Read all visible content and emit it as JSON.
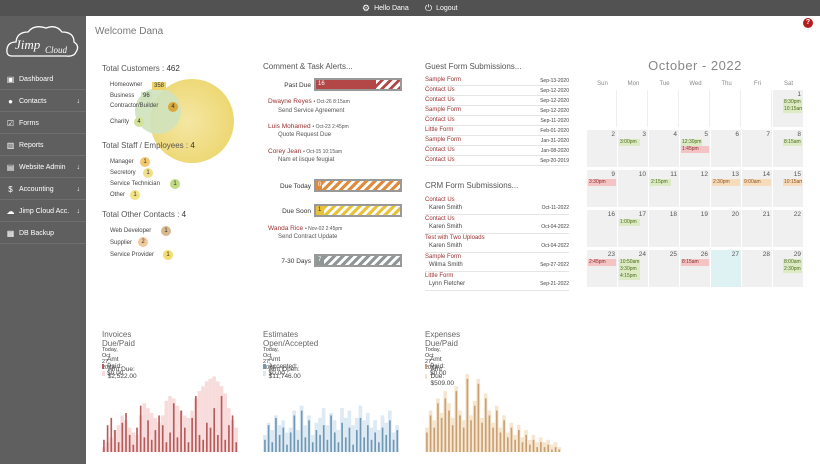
{
  "topbar": {
    "user_label": "Hello Dana",
    "logout_label": "Logout"
  },
  "alert_count": "?",
  "brand": {
    "name": "Jimp Cloud"
  },
  "sidebar": {
    "items": [
      {
        "label": "Dashboard",
        "icon": "dashboard-icon",
        "arrow": ""
      },
      {
        "label": "Contacts",
        "icon": "user-icon",
        "arrow": "↓"
      },
      {
        "label": "Forms",
        "icon": "checkbox-icon",
        "arrow": ""
      },
      {
        "label": "Reports",
        "icon": "bar-chart-icon",
        "arrow": ""
      },
      {
        "label": "Website Admin",
        "icon": "browser-icon",
        "arrow": "↓"
      },
      {
        "label": "Accounting",
        "icon": "dollar-icon",
        "arrow": "↓"
      },
      {
        "label": "Jimp Cloud Acc.",
        "icon": "jimp-icon",
        "arrow": "↓"
      },
      {
        "label": "DB Backup",
        "icon": "backup-icon",
        "arrow": ""
      }
    ]
  },
  "welcome": "Welcome Dana",
  "customers": {
    "title": "Total Customers :",
    "total": "462",
    "items": [
      {
        "label": "Homeowner",
        "value": "358"
      },
      {
        "label": "Business",
        "value": "96"
      },
      {
        "label": "Contractor/Builder",
        "value": "4"
      },
      {
        "label": "Charity",
        "value": "4"
      }
    ]
  },
  "staff": {
    "title": "Total Staff / Employees :",
    "total": "4",
    "items": [
      {
        "label": "Manager",
        "value": "1"
      },
      {
        "label": "Secretory",
        "value": "1"
      },
      {
        "label": "Service Technician",
        "value": "1"
      },
      {
        "label": "Other",
        "value": "1"
      }
    ]
  },
  "other_contacts": {
    "title": "Total Other Contacts :",
    "total": "4",
    "items": [
      {
        "label": "Web Developer",
        "value": "1"
      },
      {
        "label": "Supplier",
        "value": "2"
      },
      {
        "label": "Service Provider",
        "value": "1"
      }
    ]
  },
  "alerts": {
    "title": "Comment & Task Alerts...",
    "past_due": {
      "label": "Past Due",
      "count": "16"
    },
    "past_items": [
      {
        "name": "Dwayne Reyes",
        "meta": "• Oct-26 8:15am",
        "desc": "Send Service Agreement"
      },
      {
        "name": "Luis Mohamed",
        "meta": "• Oct-23 2:45pm",
        "desc": "Quote Request Due"
      },
      {
        "name": "Corey Jean",
        "meta": "• Oct-15 10:15am",
        "desc": "Nam et iisque feugiat"
      }
    ],
    "due_today": {
      "label": "Due Today",
      "count": "0"
    },
    "due_soon": {
      "label": "Due Soon",
      "count": "1"
    },
    "soon_items": [
      {
        "name": "Wanda Rice",
        "meta": "• Nov-02 2:45pm",
        "desc": "Send Contract Update"
      }
    ],
    "next_days": {
      "label": "7-30 Days",
      "count": "7"
    },
    "colors": {
      "past_due": "#b34747",
      "due_today": "#e08a3c",
      "due_soon": "#e8c33a",
      "next_days": "#8e9696"
    }
  },
  "guest_forms": {
    "title": "Guest Form Submissions...",
    "rows": [
      {
        "name": "Sample Form",
        "date": "Sep-13-2020"
      },
      {
        "name": "Contact Us",
        "date": "Sep-12-2020"
      },
      {
        "name": "Contact Us",
        "date": "Sep-12-2020"
      },
      {
        "name": "Sample Form",
        "date": "Sep-12-2020"
      },
      {
        "name": "Contact Us",
        "date": "Sep-11-2020"
      },
      {
        "name": "Little Form",
        "date": "Feb-01-2020"
      },
      {
        "name": "Sample Form",
        "date": "Jan-31-2020"
      },
      {
        "name": "Contact Us",
        "date": "Jan-08-2020"
      },
      {
        "name": "Contact Us",
        "date": "Sep-20-2019"
      }
    ]
  },
  "crm_forms": {
    "title": "CRM Form Submissions...",
    "rows": [
      {
        "name": "Contact Us",
        "person": "Karen Smith",
        "date": "Oct-11-2022"
      },
      {
        "name": "Contact Us",
        "person": "Karen Smith",
        "date": "Oct-04-2022"
      },
      {
        "name": "Test with Two Uploads",
        "person": "Karen Smith",
        "date": "Oct-04-2022"
      },
      {
        "name": "Sample Form",
        "person": "Wilma Smith",
        "date": "Sep-27-2022"
      },
      {
        "name": "Little Form",
        "person": "Lynn Fletcher",
        "date": "Sep-21-2022"
      }
    ]
  },
  "calendar": {
    "title": "October - 2022",
    "days_of_week": [
      "Sun",
      "Mon",
      "Tue",
      "Wed",
      "Thu",
      "Fri",
      "Sat"
    ],
    "today": "27",
    "events": {
      "1": [
        {
          "t": "8:30pm",
          "c": "g"
        },
        {
          "t": "10:15am",
          "c": "g"
        }
      ],
      "3": [
        {
          "t": "3:00pm",
          "c": "g"
        }
      ],
      "5": [
        {
          "t": "12:30pm",
          "c": "g"
        },
        {
          "t": "1:45pm",
          "c": "r"
        }
      ],
      "8": [
        {
          "t": "8:15am",
          "c": "g"
        }
      ],
      "9": [
        {
          "t": "3:30pm",
          "c": "r"
        }
      ],
      "11": [
        {
          "t": "2:15pm",
          "c": "g"
        }
      ],
      "13": [
        {
          "t": "2:30pm",
          "c": "o"
        }
      ],
      "14": [
        {
          "t": "9:00am",
          "c": "o"
        }
      ],
      "15": [
        {
          "t": "10:15am",
          "c": "o"
        }
      ],
      "17": [
        {
          "t": "1:00pm",
          "c": "g"
        }
      ],
      "23": [
        {
          "t": "2:45pm",
          "c": "r"
        }
      ],
      "24": [
        {
          "t": "10:50am",
          "c": "g"
        },
        {
          "t": "3:30pm",
          "c": "g"
        },
        {
          "t": "4:15pm",
          "c": "g"
        }
      ],
      "26": [
        {
          "t": "8:15am",
          "c": "r"
        }
      ],
      "29": [
        {
          "t": "8:00am",
          "c": "g"
        },
        {
          "t": "2:30pm",
          "c": "g"
        }
      ]
    }
  },
  "charts": {
    "invoices": {
      "title": "Invoices Due/Paid",
      "date": "Today, Oct 27, 2022",
      "paid_label": "Amt Paid: $0.00",
      "due_label": "Amt Due: $2,522.00",
      "dark": "#b85a5a",
      "light": "#f8dcdc"
    },
    "estimates": {
      "title": "Estimates Open/Accepted",
      "date": "Today, Oct 27, 2022",
      "paid_label": "Amt Accepted: $0.00",
      "due_label": "Amt Open: $11,746.00",
      "dark": "#6f98b5",
      "light": "#dde9f3"
    },
    "expenses": {
      "title": "Expenses Due/Paid",
      "date": "Today, Oct 27, 2022",
      "paid_label": "Amt Paid: $0.00",
      "due_label": "Amt Due: $509.00",
      "dark": "#c9a073",
      "light": "#f6e6cf"
    }
  },
  "chart_data": [
    {
      "type": "bar",
      "title": "Invoices Due/Paid",
      "series": [
        {
          "name": "Amt Paid: $0.00",
          "values": [
            10,
            22,
            28,
            18,
            8,
            24,
            32,
            14,
            6,
            20,
            38,
            12,
            26,
            10,
            18,
            30,
            22,
            8,
            16,
            40,
            12,
            34,
            20,
            8,
            28,
            46,
            14,
            10,
            24,
            20,
            36,
            14,
            46,
            10,
            22,
            30,
            8
          ]
        },
        {
          "name": "Amt Due: $2,522.00",
          "values": [
            4,
            8,
            12,
            18,
            22,
            30,
            26,
            20,
            16,
            14,
            30,
            40,
            36,
            32,
            28,
            24,
            30,
            42,
            46,
            44,
            38,
            34,
            30,
            28,
            34,
            44,
            50,
            54,
            58,
            60,
            62,
            58,
            54,
            48,
            36,
            26,
            20
          ]
        }
      ]
    },
    {
      "type": "bar",
      "title": "Estimates Open/Accepted",
      "series": [
        {
          "name": "Amt Accepted: $0.00",
          "values": [
            10,
            22,
            8,
            28,
            14,
            20,
            6,
            16,
            30,
            10,
            34,
            12,
            26,
            8,
            18,
            14,
            22,
            10,
            30,
            16,
            8,
            24,
            12,
            20,
            6,
            18,
            28,
            12,
            22,
            10,
            16,
            8,
            20,
            14,
            26,
            10,
            18
          ]
        },
        {
          "name": "Amt Open: $11,746.00",
          "values": [
            14,
            24,
            18,
            30,
            22,
            26,
            16,
            20,
            34,
            18,
            38,
            22,
            30,
            14,
            24,
            28,
            36,
            22,
            32,
            26,
            18,
            36,
            28,
            34,
            22,
            28,
            38,
            26,
            32,
            20,
            26,
            18,
            30,
            24,
            34,
            16,
            22
          ]
        }
      ]
    },
    {
      "type": "bar",
      "title": "Expenses Due/Paid",
      "series": [
        {
          "name": "Amt Paid: $0.00",
          "values": [
            16,
            30,
            20,
            40,
            28,
            44,
            34,
            22,
            50,
            30,
            20,
            60,
            26,
            38,
            56,
            24,
            44,
            30,
            20,
            34,
            16,
            26,
            12,
            20,
            10,
            18,
            8,
            14,
            6,
            10,
            4,
            8,
            4,
            6,
            2,
            4,
            2
          ]
        },
        {
          "name": "Amt Due: $509.00",
          "values": [
            20,
            34,
            26,
            44,
            32,
            50,
            40,
            28,
            54,
            34,
            26,
            64,
            30,
            42,
            60,
            28,
            48,
            34,
            24,
            38,
            20,
            30,
            16,
            24,
            14,
            22,
            12,
            18,
            10,
            14,
            8,
            12,
            8,
            10,
            6,
            8,
            4
          ]
        }
      ]
    }
  ]
}
